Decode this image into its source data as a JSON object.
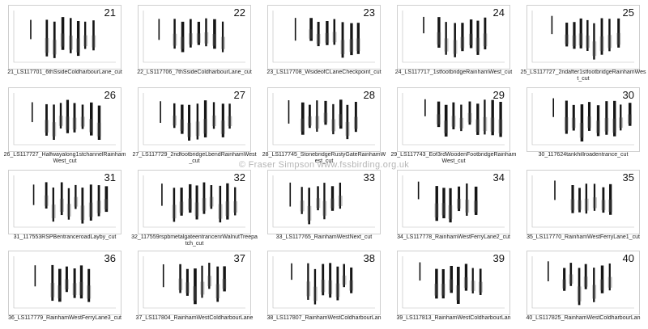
{
  "watermark": "© Fraser Simpson    www.fssbirding.org.uk",
  "thumbnails": [
    {
      "number": "21",
      "caption": "21_LS117701_6thSsideColdharbourLane_cut"
    },
    {
      "number": "22",
      "caption": "22_LS117706_7thSsideColdharbourLane_cut"
    },
    {
      "number": "23",
      "caption": "23_LS117708_WsideofCLaneCheckpoint_cut"
    },
    {
      "number": "24",
      "caption": "24_LS117717_1stfootbridgeRainhamWest_cut"
    },
    {
      "number": "25",
      "caption": "25_LS117727_2ndafter1stfootbridgeRainhamWest_cut"
    },
    {
      "number": "26",
      "caption": "26_LS117727_Halfwayalong1stchannelRainhamWest_cut"
    },
    {
      "number": "27",
      "caption": "27_LS117729_2ndfootbridgeLbendRainhamWest_cut"
    },
    {
      "number": "28",
      "caption": "28_LS117745_StonebridgeRustyGateRainhamWest_cut"
    },
    {
      "number": "29",
      "caption": "29_LS117743_Eof3rdWoodenFootbridgeRainhamWest_cut"
    },
    {
      "number": "30",
      "caption": "30_117624tankhillroadentrance_cut"
    },
    {
      "number": "31",
      "caption": "31_117553RSPBentranceroadLayby_cut"
    },
    {
      "number": "32",
      "caption": "32_117559rspbmetalgateentrancenrWalnutTreepatch_cut"
    },
    {
      "number": "33",
      "caption": "33_LS117765_RainhamWestNext_cut"
    },
    {
      "number": "34",
      "caption": "34_LS117778_RainhamWestFerryLane2_cut"
    },
    {
      "number": "35",
      "caption": "35_LS117770_RainhamWestFerryLane1_cut"
    },
    {
      "number": "36",
      "caption": "36_LS117779_RainhamWestFerryLane3_cut"
    },
    {
      "number": "37",
      "caption": "37_LS117804_RainhamWestColdharbourLane"
    },
    {
      "number": "38",
      "caption": "38_LS117807_RainhamWestColdharbourLan"
    },
    {
      "number": "39",
      "caption": "39_LS117813_RainhamWestColdharbourLan"
    },
    {
      "number": "40",
      "caption": "40_LS117825_RainhamWestColdharbourLan"
    }
  ]
}
